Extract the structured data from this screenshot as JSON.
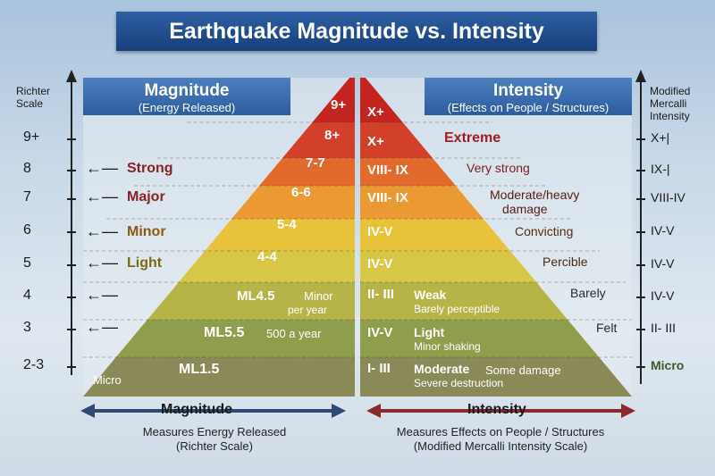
{
  "title": "Earthquake Magnitude vs. Intensity",
  "left_axis": {
    "title_line1": "Richter",
    "title_line2": "Scale",
    "ticks": [
      "9+",
      "8",
      "7",
      "6",
      "5",
      "4",
      "3",
      "2-3"
    ]
  },
  "right_axis": {
    "title_line1": "Modified",
    "title_line2": "Mercalli",
    "title_line3": "Intensity",
    "ticks": [
      "X+|",
      "IX-|",
      "VIII-IV",
      "IV-V",
      "IV-V",
      "IV-V",
      "II- III",
      "Micro"
    ]
  },
  "magnitude_header": {
    "title": "Magnitude",
    "subtitle": "(Energy Released)"
  },
  "intensity_header": {
    "title": "Intensity",
    "subtitle": "(Effects on People / Structures)"
  },
  "left_levels": [
    "9+",
    "8+",
    "7-7",
    "6-6",
    "5-4",
    "4-4"
  ],
  "left_lower": [
    {
      "ml": "ML4.5",
      "note1": "Minor",
      "note2": "per year"
    },
    {
      "ml": "ML5.5",
      "note1": "500 a year"
    },
    {
      "ml": "ML1.5"
    }
  ],
  "left_micro": "Micro",
  "magnitude_labels": [
    "Strong",
    "Major",
    "Minor",
    "Light"
  ],
  "right_levels": [
    "X+",
    "X+",
    "VIII- IX",
    "VIII- IX",
    "IV-V",
    "IV-V",
    "II- III",
    "IV-V",
    "I- III"
  ],
  "intensity_effects": [
    {
      "text": "Extreme"
    },
    {
      "text": "Very strong"
    },
    {
      "text": "Moderate/heavy",
      "text2": "damage"
    },
    {
      "text": "Convicting"
    },
    {
      "text": "Percible"
    },
    {
      "text": "Barely"
    },
    {
      "text": "Felt"
    }
  ],
  "intensity_inner": [
    {
      "main": "Weak",
      "sub": "Barely perceptible"
    },
    {
      "main": "Light",
      "sub": "Minor shaking"
    },
    {
      "main": "Moderate",
      "extra": "Some damage",
      "sub": "Severe destruction"
    }
  ],
  "footer": {
    "magnitude_label": "Magnitude",
    "magnitude_desc1": "Measures Energy Released",
    "magnitude_desc2": "(Richter Scale)",
    "intensity_label": "Intensity",
    "intensity_desc1": "Measures Effects on People / Structures",
    "intensity_desc2": "(Modified Mercalli Intensity Scale)"
  },
  "colors": {
    "band_top": "#c4241f",
    "band_red2": "#d3402a",
    "band_orange": "#e26a2c",
    "band_orange2": "#eb9a33",
    "band_yellow": "#e8c23a",
    "band_yellow2": "#d8c646",
    "band_yg": "#b6b449",
    "band_green": "#8f9e4c",
    "band_bottom": "#8a8a58",
    "magnitude_arrow": "#2b4a75",
    "intensity_arrow": "#8b2a2a"
  }
}
